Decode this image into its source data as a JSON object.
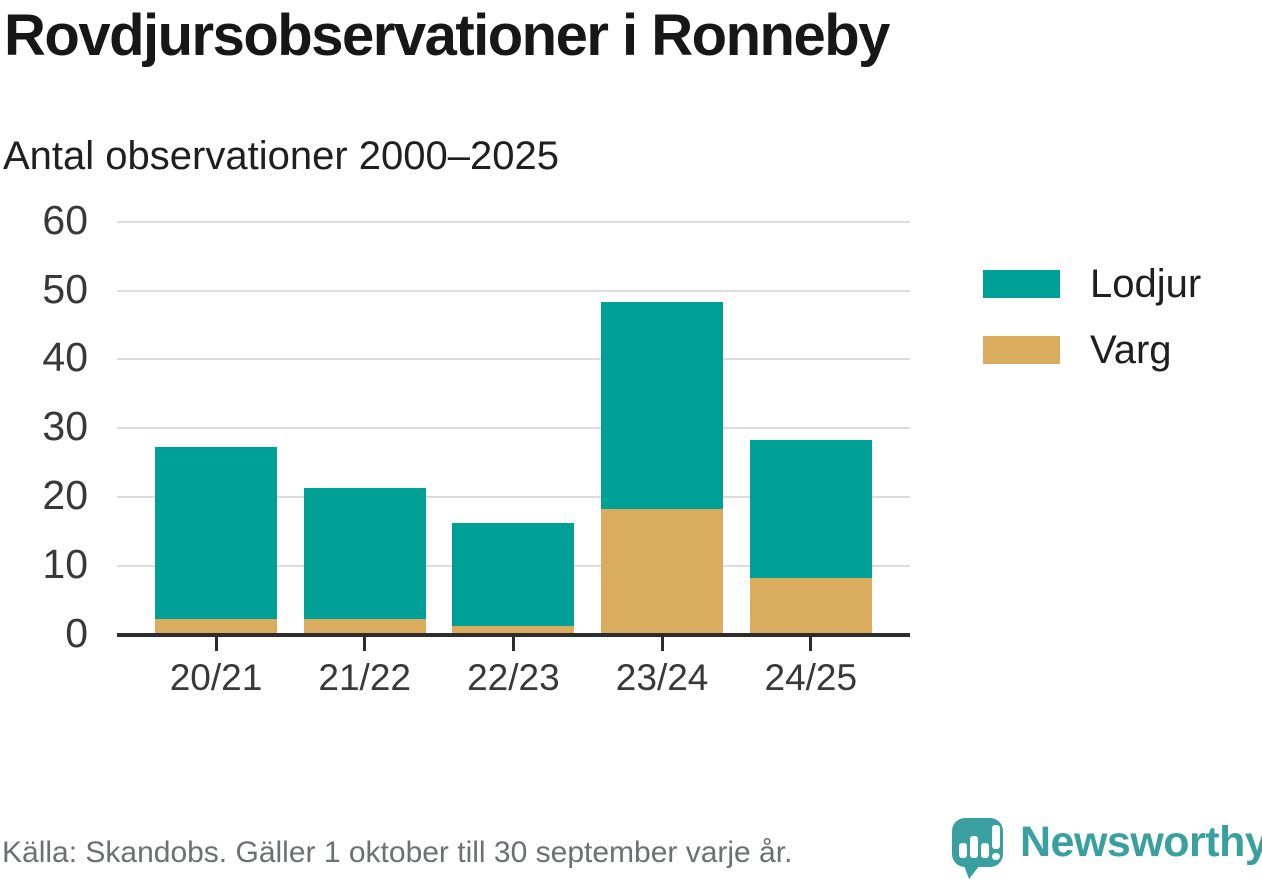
{
  "title": "Rovdjursobservationer i Ronneby",
  "subtitle": "Antal observationer 2000–2025",
  "source": "Källa: Skandobs. Gäller 1 oktober till 30 september varje år.",
  "brand": {
    "name": "Newsworthy"
  },
  "colors": {
    "lodjur": "#00a096",
    "varg": "#d9ac5e",
    "brand": "#3a9f9f",
    "grid": "#dcdcdc",
    "axis": "#2d2d2d"
  },
  "legend": {
    "items": [
      {
        "label": "Lodjur",
        "color": "#00a096"
      },
      {
        "label": "Varg",
        "color": "#d9ac5e"
      }
    ]
  },
  "chart_data": {
    "type": "bar",
    "stacked": true,
    "title": "Rovdjursobservationer i Ronneby",
    "subtitle": "Antal observationer 2000–2025",
    "categories": [
      "20/21",
      "21/22",
      "22/23",
      "23/24",
      "24/25"
    ],
    "series": [
      {
        "name": "Lodjur",
        "color": "#00a096",
        "values": [
          25,
          19,
          15,
          30,
          20
        ]
      },
      {
        "name": "Varg",
        "color": "#d9ac5e",
        "values": [
          2,
          2,
          1,
          18,
          8
        ]
      }
    ],
    "totals": [
      27,
      21,
      16,
      48,
      28
    ],
    "xlabel": "",
    "ylabel": "Antal observationer",
    "ylim": [
      0,
      60
    ],
    "yticks": [
      0,
      10,
      20,
      30,
      40,
      50,
      60
    ],
    "grid": true,
    "legend_position": "right",
    "stack_bottom_series": "Varg"
  }
}
